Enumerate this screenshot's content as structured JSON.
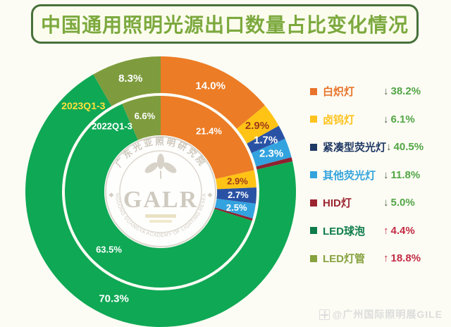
{
  "title": {
    "text": "中国通用照明光源出口数量占比变化情况"
  },
  "chart_data": {
    "type": "donut",
    "title": "中国通用照明光源出口数量占比变化情况",
    "legend_position": "right",
    "categories": [
      "白炽灯",
      "卤钨灯",
      "紧凑型荧光灯",
      "其他荧光灯",
      "HID灯",
      "LED球泡",
      "LED灯管"
    ],
    "colors": [
      "#EC7C25",
      "#FFC316",
      "#2A52A4",
      "#33A3DF",
      "#8E2230",
      "#0FA855",
      "#7E9C3D"
    ],
    "slice_label_colors": [
      "#FFFFFF",
      "#9E3B1B",
      "#FFFFFF",
      "#FFFFFF",
      "#FFFFFF",
      "#FFFFFF",
      "#FFFFFF"
    ],
    "rings": [
      {
        "name": "2023Q1-3",
        "name_color": "#FFE13B",
        "position": "outer",
        "values": [
          14.0,
          2.9,
          1.7,
          2.3,
          0.5,
          70.3,
          8.3
        ],
        "labels": [
          "14.0%",
          "2.9%",
          "1.7%",
          "2.3%",
          "",
          "70.3%",
          "8.3%"
        ]
      },
      {
        "name": "2022Q1-3",
        "name_color": "#FFFFFF",
        "position": "inner",
        "values": [
          21.4,
          2.9,
          2.7,
          2.5,
          0.4,
          63.5,
          6.6
        ],
        "labels": [
          "21.4%",
          "2.9%",
          "2.7%",
          "2.5%",
          "",
          "63.5%",
          "6.6%"
        ]
      }
    ]
  },
  "legend": {
    "items": [
      {
        "label": "白炽灯",
        "color": "#E8732A",
        "direction": "down",
        "change": "38.2%"
      },
      {
        "label": "卤钨灯",
        "color": "#FFC21E",
        "direction": "down",
        "change": "6.1%"
      },
      {
        "label": "紧凑型荧光灯",
        "color": "#1F3864",
        "direction": "down",
        "change": "40.5%"
      },
      {
        "label": "其他荧光灯",
        "color": "#33A3DC",
        "direction": "down",
        "change": "11.8%"
      },
      {
        "label": "HID灯",
        "color": "#9C2430",
        "direction": "down",
        "change": "5.0%"
      },
      {
        "label": "LED球泡",
        "color": "#0E7C4A",
        "direction": "up",
        "change": "4.4%"
      },
      {
        "label": "LED灯管",
        "color": "#86A23F",
        "direction": "up",
        "change": "18.8%"
      }
    ],
    "down_arrow": "↓",
    "up_arrow": "↑",
    "down_arrow_color": "#56604E",
    "up_arrow_color": "#C32B44",
    "down_value_color": "#52A546",
    "up_value_color": "#C32B44"
  },
  "seal": {
    "top_text": "广东光亚照明研究院",
    "abbr": "GALR",
    "bottom_text": "GUANGDONG GUANGYA ACADEMY OF LIGHTING RESEARCH"
  },
  "watermark": {
    "text": "@广州国际照明展GILE"
  }
}
